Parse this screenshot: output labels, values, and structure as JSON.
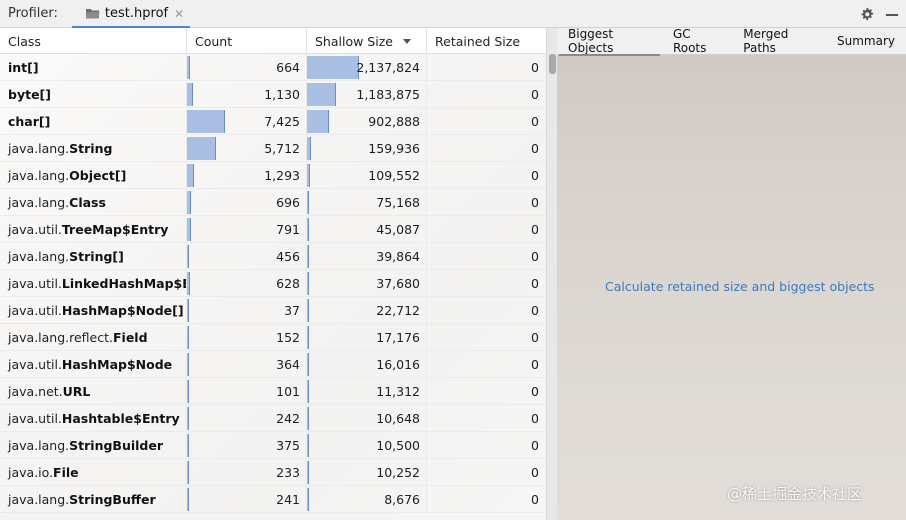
{
  "titlebar": {
    "profiler_label": "Profiler:",
    "tab_label": "test.hprof",
    "tab_icon": "folder-icon",
    "close_icon": "close-icon",
    "settings_icon": "gear-icon",
    "minimize_icon": "minimize-icon"
  },
  "table": {
    "columns": [
      "Class",
      "Count",
      "Shallow Size",
      "Retained Size"
    ],
    "sort_column": "Shallow Size",
    "sort_direction": "descending",
    "bar_color": "#789cd6",
    "rows": [
      {
        "pkg": "",
        "name": "int[]",
        "count": "664",
        "shallow": "2,137,824",
        "retained": "0",
        "count_v": 664,
        "shallow_v": 2137824
      },
      {
        "pkg": "",
        "name": "byte[]",
        "count": "1,130",
        "shallow": "1,183,875",
        "retained": "0",
        "count_v": 1130,
        "shallow_v": 1183875
      },
      {
        "pkg": "",
        "name": "char[]",
        "count": "7,425",
        "shallow": "902,888",
        "retained": "0",
        "count_v": 7425,
        "shallow_v": 902888
      },
      {
        "pkg": "java.lang.",
        "name": "String",
        "count": "5,712",
        "shallow": "159,936",
        "retained": "0",
        "count_v": 5712,
        "shallow_v": 159936
      },
      {
        "pkg": "java.lang.",
        "name": "Object[]",
        "count": "1,293",
        "shallow": "109,552",
        "retained": "0",
        "count_v": 1293,
        "shallow_v": 109552
      },
      {
        "pkg": "java.lang.",
        "name": "Class",
        "count": "696",
        "shallow": "75,168",
        "retained": "0",
        "count_v": 696,
        "shallow_v": 75168
      },
      {
        "pkg": "java.util.",
        "name": "TreeMap$Entry",
        "count": "791",
        "shallow": "45,087",
        "retained": "0",
        "count_v": 791,
        "shallow_v": 45087
      },
      {
        "pkg": "java.lang.",
        "name": "String[]",
        "count": "456",
        "shallow": "39,864",
        "retained": "0",
        "count_v": 456,
        "shallow_v": 39864
      },
      {
        "pkg": "java.util.",
        "name": "LinkedHashMap$Entr",
        "count": "628",
        "shallow": "37,680",
        "retained": "0",
        "count_v": 628,
        "shallow_v": 37680
      },
      {
        "pkg": "java.util.",
        "name": "HashMap$Node[]",
        "count": "37",
        "shallow": "22,712",
        "retained": "0",
        "count_v": 37,
        "shallow_v": 22712
      },
      {
        "pkg": "java.lang.reflect.",
        "name": "Field",
        "count": "152",
        "shallow": "17,176",
        "retained": "0",
        "count_v": 152,
        "shallow_v": 17176
      },
      {
        "pkg": "java.util.",
        "name": "HashMap$Node",
        "count": "364",
        "shallow": "16,016",
        "retained": "0",
        "count_v": 364,
        "shallow_v": 16016
      },
      {
        "pkg": "java.net.",
        "name": "URL",
        "count": "101",
        "shallow": "11,312",
        "retained": "0",
        "count_v": 101,
        "shallow_v": 11312
      },
      {
        "pkg": "java.util.",
        "name": "Hashtable$Entry",
        "count": "242",
        "shallow": "10,648",
        "retained": "0",
        "count_v": 242,
        "shallow_v": 10648
      },
      {
        "pkg": "java.lang.",
        "name": "StringBuilder",
        "count": "375",
        "shallow": "10,500",
        "retained": "0",
        "count_v": 375,
        "shallow_v": 10500
      },
      {
        "pkg": "java.io.",
        "name": "File",
        "count": "233",
        "shallow": "10,252",
        "retained": "0",
        "count_v": 233,
        "shallow_v": 10252
      },
      {
        "pkg": "java.lang.",
        "name": "StringBuffer",
        "count": "241",
        "shallow": "8,676",
        "retained": "0",
        "count_v": 241,
        "shallow_v": 8676
      }
    ]
  },
  "right_panel": {
    "tabs": [
      "Biggest Objects",
      "GC Roots",
      "Merged Paths",
      "Summary"
    ],
    "active_tab": "Biggest Objects",
    "calculate_link": "Calculate retained size and biggest objects",
    "link_color": "#3d79c2",
    "watermark": "@稀土掘金技术社区"
  }
}
